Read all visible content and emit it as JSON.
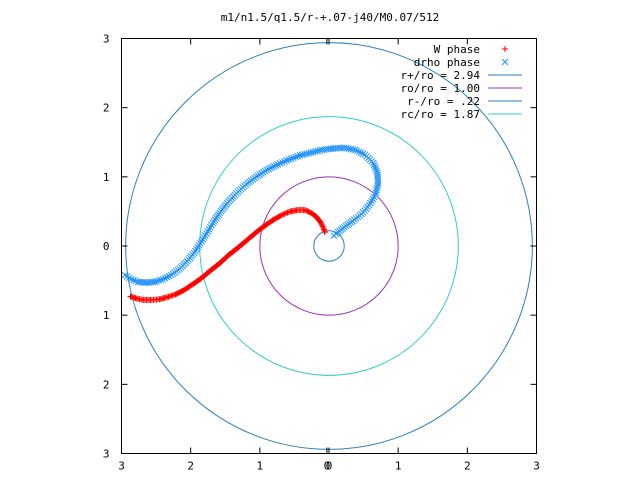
{
  "chart_data": {
    "type": "scatter",
    "title": "m1/n1.5/q1.5/r-+.07-j40/M0.07/512",
    "xlabel": "",
    "ylabel": "",
    "xlim": [
      -3,
      3
    ],
    "ylim": [
      -3,
      3
    ],
    "x_ticks": [
      "3",
      "2",
      "1",
      "0",
      "0",
      "1",
      "2",
      "3"
    ],
    "x_tick_values": [
      -3,
      -2,
      -1,
      -0.03,
      0,
      1,
      2,
      3
    ],
    "y_ticks": [
      "3",
      "2",
      "1",
      "0",
      "1",
      "2",
      "3"
    ],
    "y_tick_values": [
      3,
      2,
      1,
      0,
      -1,
      -2,
      -3
    ],
    "grid": false,
    "legend_position": "top-right",
    "series": [
      {
        "name": "W phase",
        "kind": "points",
        "marker": "plus",
        "color": "#ff0000",
        "points": [
          [
            -2.87,
            -0.73
          ],
          [
            -2.78,
            -0.76
          ],
          [
            -2.68,
            -0.78
          ],
          [
            -2.56,
            -0.78
          ],
          [
            -2.45,
            -0.77
          ],
          [
            -2.34,
            -0.74
          ],
          [
            -2.22,
            -0.7
          ],
          [
            -2.1,
            -0.64
          ],
          [
            -1.98,
            -0.56
          ],
          [
            -1.85,
            -0.47
          ],
          [
            -1.72,
            -0.36
          ],
          [
            -1.58,
            -0.25
          ],
          [
            -1.45,
            -0.13
          ],
          [
            -1.31,
            -0.02
          ],
          [
            -1.18,
            0.09
          ],
          [
            -1.05,
            0.2
          ],
          [
            -0.92,
            0.3
          ],
          [
            -0.8,
            0.38
          ],
          [
            -0.68,
            0.45
          ],
          [
            -0.56,
            0.5
          ],
          [
            -0.45,
            0.52
          ],
          [
            -0.35,
            0.52
          ],
          [
            -0.26,
            0.48
          ],
          [
            -0.18,
            0.42
          ],
          [
            -0.12,
            0.34
          ],
          [
            -0.08,
            0.26
          ],
          [
            -0.06,
            0.2
          ]
        ]
      },
      {
        "name": "drho phase",
        "kind": "points",
        "marker": "cross",
        "color": "#1e90ff",
        "points": [
          [
            -2.95,
            -0.42
          ],
          [
            -2.86,
            -0.48
          ],
          [
            -2.76,
            -0.52
          ],
          [
            -2.64,
            -0.53
          ],
          [
            -2.52,
            -0.52
          ],
          [
            -2.4,
            -0.48
          ],
          [
            -2.28,
            -0.42
          ],
          [
            -2.16,
            -0.33
          ],
          [
            -2.05,
            -0.22
          ],
          [
            -1.95,
            -0.1
          ],
          [
            -1.86,
            0.04
          ],
          [
            -1.77,
            0.18
          ],
          [
            -1.68,
            0.33
          ],
          [
            -1.58,
            0.48
          ],
          [
            -1.47,
            0.62
          ],
          [
            -1.34,
            0.76
          ],
          [
            -1.2,
            0.89
          ],
          [
            -1.05,
            1.0
          ],
          [
            -0.9,
            1.1
          ],
          [
            -0.74,
            1.18
          ],
          [
            -0.58,
            1.25
          ],
          [
            -0.42,
            1.31
          ],
          [
            -0.26,
            1.35
          ],
          [
            -0.1,
            1.39
          ],
          [
            0.06,
            1.41
          ],
          [
            0.22,
            1.42
          ],
          [
            0.38,
            1.39
          ],
          [
            0.52,
            1.32
          ],
          [
            0.64,
            1.2
          ],
          [
            0.7,
            1.06
          ],
          [
            0.71,
            0.9
          ],
          [
            0.67,
            0.74
          ],
          [
            0.58,
            0.59
          ],
          [
            0.47,
            0.46
          ],
          [
            0.34,
            0.36
          ],
          [
            0.22,
            0.27
          ],
          [
            0.13,
            0.2
          ],
          [
            0.07,
            0.15
          ]
        ]
      },
      {
        "name": "r+/ro = 2.94",
        "kind": "circle",
        "radius": 2.94,
        "color": "#2a7fbf"
      },
      {
        "name": "ro/ro = 1.00",
        "kind": "circle",
        "radius": 1.0,
        "color": "#9b30c0"
      },
      {
        "name": "r-/ro = .22",
        "kind": "circle",
        "radius": 0.22,
        "color": "#2a7fbf"
      },
      {
        "name": "rc/ro = 1.87",
        "kind": "circle",
        "radius": 1.87,
        "color": "#33cccc"
      }
    ]
  }
}
